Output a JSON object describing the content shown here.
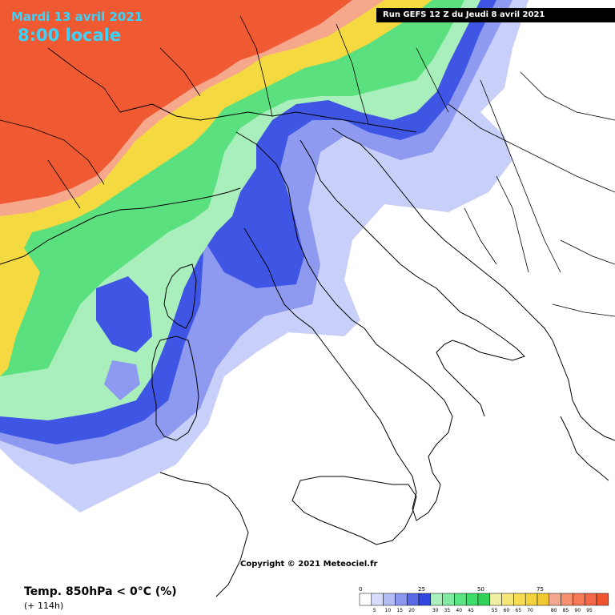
{
  "header": {
    "date": "Mardi 13 avril 2021",
    "time": "8:00 locale",
    "run": "Run GEFS 12 Z du Jeudi 8 avril 2021"
  },
  "footer": {
    "copyright": "Copyright © 2021 Meteociel.fr",
    "parameter": "Temp. 850hPa < 0°C (%)",
    "lead_time": "(+ 114h)"
  },
  "legend": {
    "major_ticks": [
      "0",
      "25",
      "50",
      "75"
    ],
    "minor_ticks": [
      "5",
      "10",
      "15",
      "20",
      "30",
      "35",
      "40",
      "45",
      "55",
      "60",
      "65",
      "70",
      "80",
      "85",
      "90",
      "95"
    ],
    "colors": [
      "#ffffff",
      "#d8dcfb",
      "#b4bcf5",
      "#8c98ee",
      "#5a6ae6",
      "#3246e0",
      "#aaf0bc",
      "#82eaa0",
      "#5ae482",
      "#3cdc68",
      "#32d25a",
      "#f0eea0",
      "#f5e678",
      "#f5dc50",
      "#f3d23c",
      "#f0c830",
      "#f5a890",
      "#f59070",
      "#f57a58",
      "#f26848",
      "#f05532"
    ]
  },
  "colors": {
    "title": "#39d3ff",
    "high_probability": "#f05a32",
    "low_probability": "#c8cff8"
  }
}
